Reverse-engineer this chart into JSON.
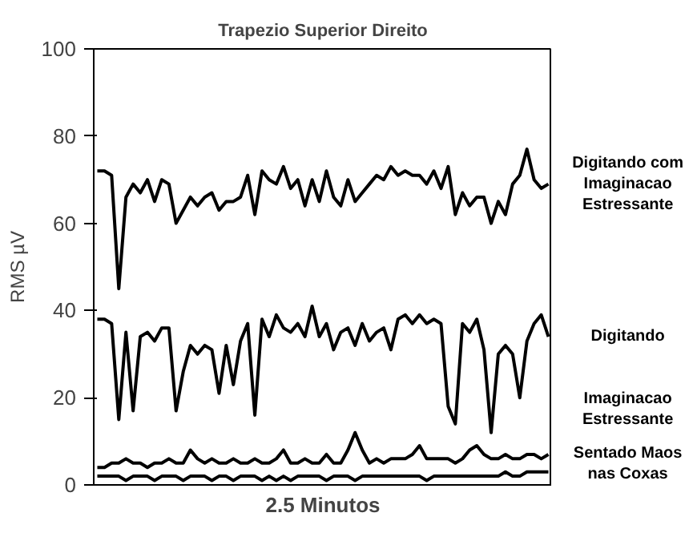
{
  "chart_data": {
    "type": "line",
    "title": "Trapezio Superior Direito",
    "xlabel": "2.5 Minutos",
    "ylabel": "RMS µV",
    "categories": [
      null,
      null,
      null,
      null,
      null,
      null,
      null,
      null,
      null,
      null,
      null,
      null,
      null,
      null,
      null,
      null,
      null,
      null,
      null,
      null,
      null,
      null,
      null,
      null,
      null,
      null,
      null,
      null,
      null,
      null,
      null,
      null,
      null,
      null,
      null,
      null,
      null,
      null,
      null,
      null,
      null,
      null,
      null,
      null,
      null,
      null,
      null,
      null,
      null,
      null,
      null,
      null,
      null,
      null,
      null,
      null,
      null,
      null,
      null,
      null,
      null,
      null,
      null,
      null
    ],
    "ylim": [
      0,
      100
    ],
    "yticks": [
      0,
      20,
      40,
      60,
      80,
      100
    ],
    "grid": false,
    "legend": false,
    "tick_labels": "y",
    "line_style": "solid",
    "series": [
      {
        "name": "Digitando com Imaginacao Estressante",
        "color": "#000000",
        "values": [
          72,
          72,
          71,
          45,
          66,
          69,
          67,
          70,
          65,
          70,
          69,
          60,
          63,
          66,
          64,
          66,
          67,
          63,
          65,
          65,
          66,
          71,
          62,
          72,
          70,
          69,
          73,
          68,
          70,
          64,
          70,
          65,
          72,
          66,
          64,
          70,
          65,
          67,
          69,
          71,
          70,
          73,
          71,
          72,
          71,
          71,
          69,
          72,
          68,
          73,
          62,
          67,
          64,
          66,
          66,
          60,
          65,
          62,
          69,
          71,
          77,
          70,
          68,
          69
        ]
      },
      {
        "name": "Digitando",
        "color": "#000000",
        "values": [
          38,
          38,
          37,
          15,
          35,
          17,
          34,
          35,
          33,
          36,
          36,
          17,
          26,
          32,
          30,
          32,
          31,
          21,
          32,
          23,
          33,
          37,
          16,
          38,
          34,
          39,
          36,
          35,
          37,
          34,
          41,
          34,
          37,
          31,
          35,
          36,
          32,
          37,
          33,
          35,
          36,
          31,
          38,
          39,
          37,
          39,
          37,
          38,
          37,
          18,
          14,
          37,
          35,
          38,
          31,
          12,
          30,
          32,
          30,
          20,
          33,
          37,
          39,
          34
        ]
      },
      {
        "name": "Imaginacao Estressante",
        "color": "#000000",
        "values": [
          4,
          4,
          5,
          5,
          6,
          5,
          5,
          4,
          5,
          5,
          6,
          5,
          5,
          8,
          6,
          5,
          6,
          5,
          5,
          6,
          5,
          5,
          6,
          5,
          5,
          6,
          8,
          5,
          5,
          6,
          5,
          5,
          7,
          5,
          5,
          8,
          12,
          8,
          5,
          6,
          5,
          6,
          6,
          6,
          7,
          9,
          6,
          6,
          6,
          6,
          5,
          6,
          8,
          9,
          7,
          6,
          6,
          7,
          6,
          6,
          7,
          7,
          6,
          7
        ]
      },
      {
        "name": "Sentado Maos nas Coxas",
        "color": "#000000",
        "values": [
          2,
          2,
          2,
          2,
          1,
          2,
          2,
          2,
          1,
          2,
          2,
          2,
          1,
          2,
          2,
          2,
          1,
          2,
          2,
          1,
          2,
          2,
          2,
          1,
          2,
          1,
          2,
          1,
          2,
          2,
          2,
          2,
          1,
          2,
          2,
          2,
          1,
          2,
          2,
          2,
          2,
          2,
          2,
          2,
          2,
          2,
          1,
          2,
          2,
          2,
          2,
          2,
          2,
          2,
          2,
          2,
          2,
          3,
          2,
          2,
          3,
          3,
          3,
          3
        ]
      }
    ]
  }
}
